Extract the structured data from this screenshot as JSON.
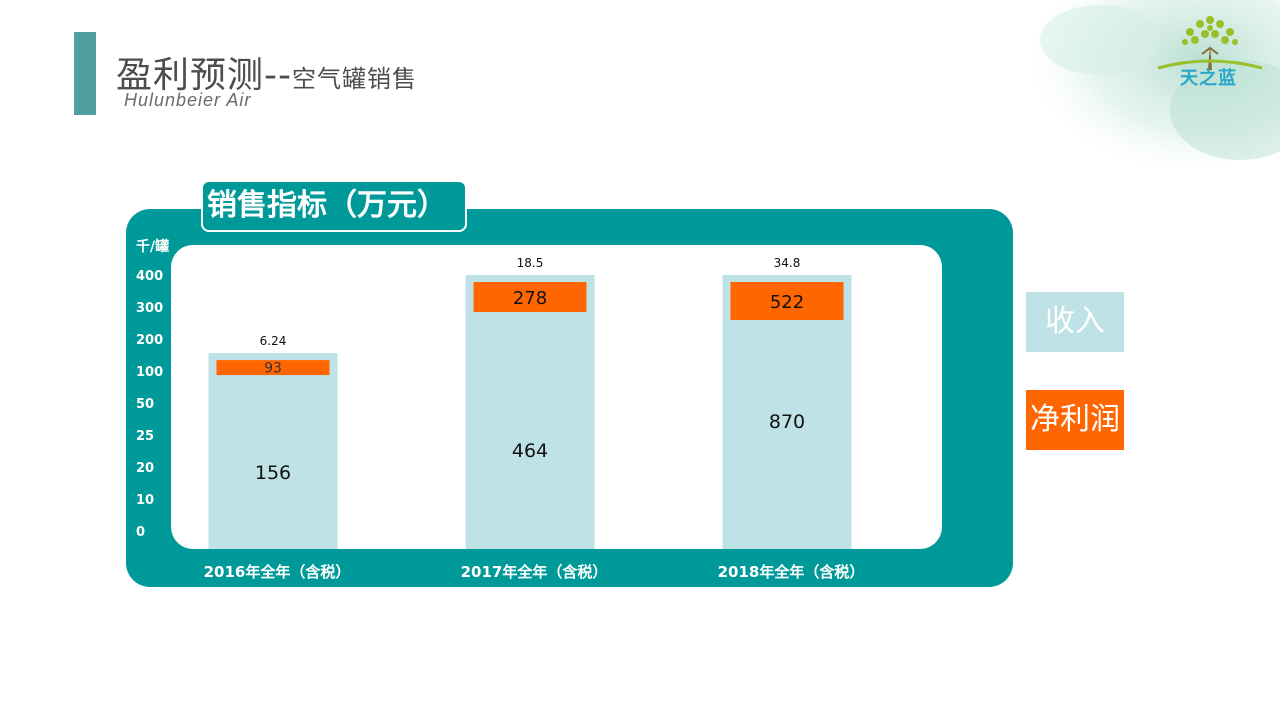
{
  "header": {
    "title_main": "盈利预测--",
    "title_sub": "空气罐销售",
    "subtitle": "Hulunbeier  Air"
  },
  "logo": {
    "text": "天之蓝"
  },
  "colors": {
    "accent": "#4f9ea0",
    "panel": "#009999",
    "revenue": "#bfe2e6",
    "profit": "#ff6600"
  },
  "legend": [
    {
      "label": "收入"
    },
    {
      "label": "净利润"
    }
  ],
  "chart_data": {
    "type": "bar",
    "title": "销售指标（万元）",
    "ylabel": "千/罐",
    "y_tick_labels": [
      "0",
      "10",
      "20",
      "25",
      "50",
      "100",
      "200",
      "300",
      "400"
    ],
    "categories": [
      "2016年全年（含税）",
      "2017年全年（含税）",
      "2018年全年（含税）"
    ],
    "series": [
      {
        "name": "收入",
        "values": [
          156,
          464,
          870
        ]
      },
      {
        "name": "净利润",
        "values": [
          93,
          278,
          522
        ]
      }
    ],
    "top_labels": [
      "6.24",
      "18.5",
      "34.8"
    ],
    "legend_position": "right",
    "grid": false
  }
}
